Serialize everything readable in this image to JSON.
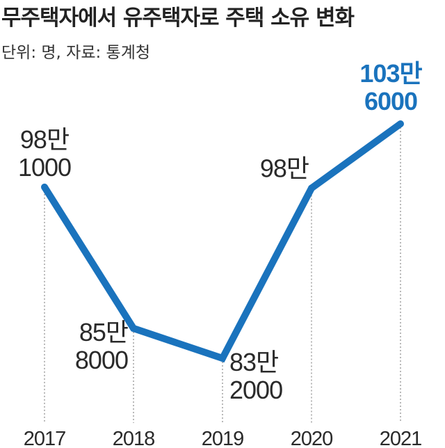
{
  "chart_data": {
    "type": "line",
    "title": "무주택자에서 유주택자로 주택 소유 변화",
    "subtitle": "단위: 명, 자료: 통계청",
    "x": [
      "2017",
      "2018",
      "2019",
      "2020",
      "2021"
    ],
    "series": [
      {
        "values": [
          981000,
          858000,
          832000,
          980000,
          1036000
        ],
        "labels": [
          [
            "98만",
            "1000"
          ],
          [
            "85만",
            "8000"
          ],
          [
            "83만",
            "2000"
          ],
          [
            "98만"
          ],
          [
            "103만",
            "6000"
          ]
        ]
      }
    ],
    "colors": {
      "line": "#1a73bd",
      "highlight_label": "#1a73bd",
      "guide": "#888888"
    },
    "grid": false,
    "legend": "none"
  }
}
